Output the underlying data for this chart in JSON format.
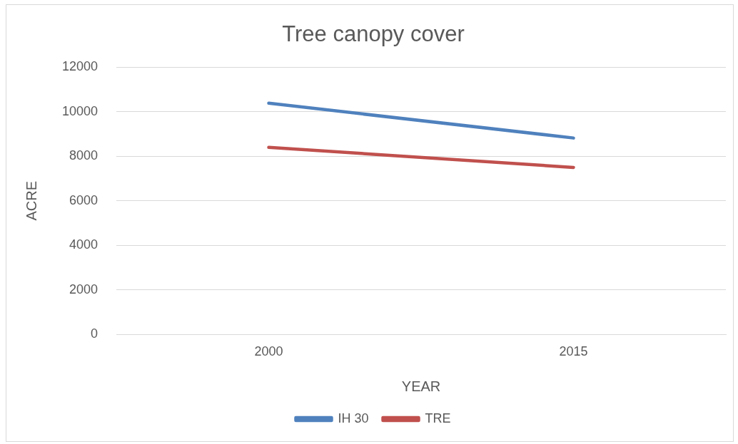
{
  "chart_data": {
    "type": "line",
    "title": "Tree canopy cover",
    "xlabel": "YEAR",
    "ylabel": "ACRE",
    "categories": [
      "2000",
      "2015"
    ],
    "series": [
      {
        "name": "IH 30",
        "color": "#4f81bd",
        "values": [
          10380,
          8820
        ]
      },
      {
        "name": "TRE",
        "color": "#c0504d",
        "values": [
          8400,
          7500
        ]
      }
    ],
    "ylim": [
      0,
      12000
    ],
    "yticks": [
      0,
      2000,
      4000,
      6000,
      8000,
      10000,
      12000
    ],
    "grid": "y",
    "legend": "bottom",
    "marker": "none",
    "line_style": "solid"
  }
}
